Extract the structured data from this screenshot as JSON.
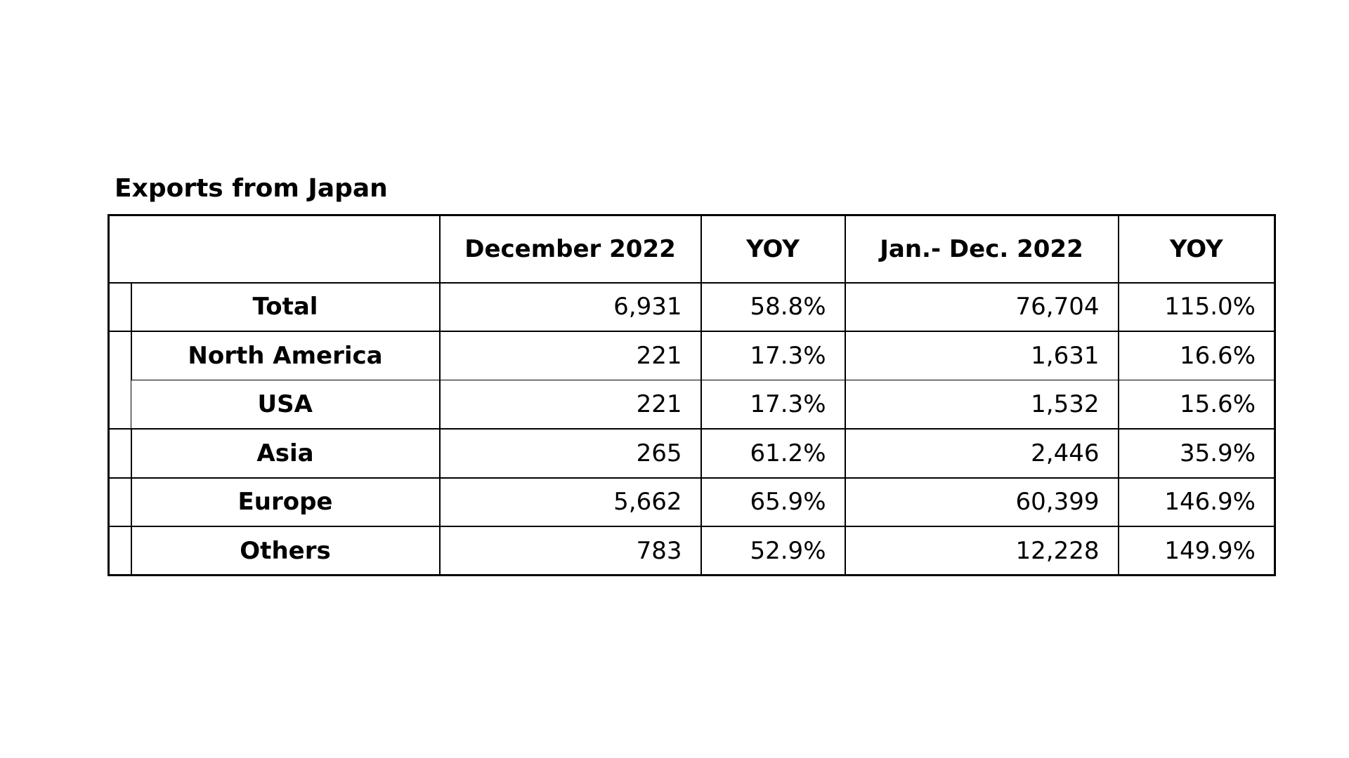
{
  "title": "Exports from Japan",
  "table": {
    "columns": [
      "",
      "December 2022",
      "YOY",
      "Jan.- Dec. 2022",
      "YOY"
    ],
    "rows": [
      {
        "label": "Total",
        "indent": false,
        "values": [
          "6,931",
          "58.8%",
          "76,704",
          "115.0%"
        ]
      },
      {
        "label": "North America",
        "indent": false,
        "values": [
          "221",
          "17.3%",
          "1,631",
          "16.6%"
        ]
      },
      {
        "label": "USA",
        "indent": true,
        "values": [
          "221",
          "17.3%",
          "1,532",
          "15.6%"
        ]
      },
      {
        "label": "Asia",
        "indent": false,
        "values": [
          "265",
          "61.2%",
          "2,446",
          "35.9%"
        ]
      },
      {
        "label": "Europe",
        "indent": false,
        "values": [
          "5,662",
          "65.9%",
          "60,399",
          "146.9%"
        ]
      },
      {
        "label": "Others",
        "indent": false,
        "values": [
          "783",
          "52.9%",
          "12,228",
          "149.9%"
        ]
      }
    ]
  }
}
